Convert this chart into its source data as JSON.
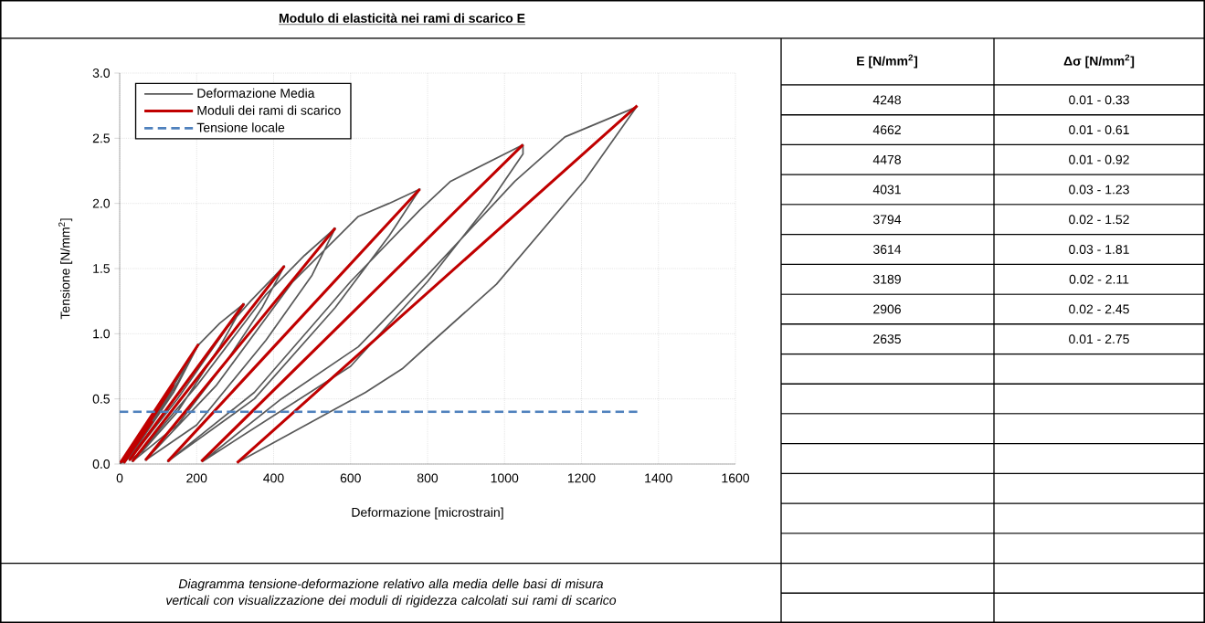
{
  "chart_data": {
    "type": "line",
    "title": "Modulo di elasticità nei rami di scarico E",
    "xlabel": "Deformazione [microstrain]",
    "ylabel": "Tensione [N/mm$^{2}$]",
    "xlim": [
      0,
      1600
    ],
    "ylim": [
      0,
      3
    ],
    "xticks": [
      0,
      200,
      400,
      600,
      800,
      1000,
      1200,
      1400,
      1600
    ],
    "yticks": [
      {
        "value": 0,
        "label": "0.0"
      },
      {
        "value": 0.5,
        "label": "0.5"
      },
      {
        "value": 1,
        "label": "1.0"
      },
      {
        "value": 1.5,
        "label": "1.5"
      },
      {
        "value": 2,
        "label": "2.0"
      },
      {
        "value": 2.5,
        "label": "2.5"
      },
      {
        "value": 3,
        "label": "3.0"
      }
    ],
    "grid": true,
    "legend": "top left",
    "series": [
      {
        "name": "Deformazione Media",
        "color": "#595959",
        "x": [
          0,
          40,
          85,
          50,
          10,
          60,
          100,
          140,
          90,
          40,
          11,
          80,
          150,
          205,
          140,
          60,
          5,
          80,
          200,
          260,
          323,
          260,
          150,
          60,
          25,
          150,
          280,
          340,
          428,
          370,
          280,
          150,
          33,
          200,
          380,
          480,
          560,
          500,
          380,
          200,
          67,
          250,
          450,
          620,
          700,
          780,
          700,
          560,
          350,
          125,
          350,
          600,
          780,
          860,
          1048,
          1048,
          960,
          800,
          600,
          215,
          420,
          620,
          800,
          1027,
          1157,
          1343,
          1209,
          979,
          805,
          734,
          639,
          305
        ],
        "values": [
          0,
          0.15,
          0.33,
          0.15,
          0.01,
          0.25,
          0.42,
          0.61,
          0.35,
          0.1,
          0.01,
          0.3,
          0.62,
          0.92,
          0.55,
          0.2,
          0.01,
          0.3,
          0.9,
          1.08,
          1.23,
          0.9,
          0.4,
          0.1,
          0.03,
          0.5,
          1.05,
          1.25,
          1.52,
          1.2,
          0.8,
          0.3,
          0.02,
          0.6,
          1.3,
          1.6,
          1.81,
          1.45,
          0.95,
          0.3,
          0.03,
          0.6,
          1.4,
          1.9,
          2.0,
          2.11,
          1.75,
          1.2,
          0.5,
          0.02,
          0.55,
          1.4,
          1.95,
          2.17,
          2.45,
          2.38,
          2.0,
          1.4,
          0.75,
          0.02,
          0.5,
          0.9,
          1.45,
          2.17,
          2.51,
          2.74,
          2.18,
          1.38,
          0.92,
          0.73,
          0.55,
          0.01
        ]
      },
      {
        "name": "Moduli dei rami di scarico",
        "color": "#c00000",
        "x": [
          10,
          85,
          null,
          11,
          140,
          null,
          2,
          205,
          null,
          25,
          323,
          null,
          33,
          428,
          null,
          67,
          560,
          null,
          125,
          780,
          null,
          212,
          1048,
          null,
          305,
          1345
        ],
        "values": [
          0.01,
          0.33,
          null,
          0.01,
          0.61,
          null,
          0.01,
          0.92,
          null,
          0.03,
          1.23,
          null,
          0.02,
          1.52,
          null,
          0.03,
          1.81,
          null,
          0.02,
          2.11,
          null,
          0.02,
          2.45,
          null,
          0.01,
          2.75
        ]
      },
      {
        "name": "Tensione locale",
        "color": "#4f81bd",
        "line_style": "dashed",
        "x": [
          0,
          1345
        ],
        "values": [
          0.4,
          0.4
        ]
      }
    ],
    "annotations": [
      "E [N/mm$^{2}$]",
      "Δσ [N/mm$^{2}$]",
      "4248",
      "0.01 - 0.33",
      "4662",
      "0.01 - 0.61",
      "4478",
      "0.01 - 0.92",
      "4031",
      "0.03 - 1.23",
      "3794",
      "0.02 - 1.52",
      "3614",
      "0.03 - 1.81",
      "3189",
      "0.02 - 2.11",
      "2906",
      "0.02 - 2.45",
      "2635",
      "0.01 - 2.75",
      "Diagramma tensione-deformazione relativo alla media delle basi di misura  verticali con visualizzazione dei moduli di rigidezza calcolati sui rami di scarico"
    ]
  }
}
